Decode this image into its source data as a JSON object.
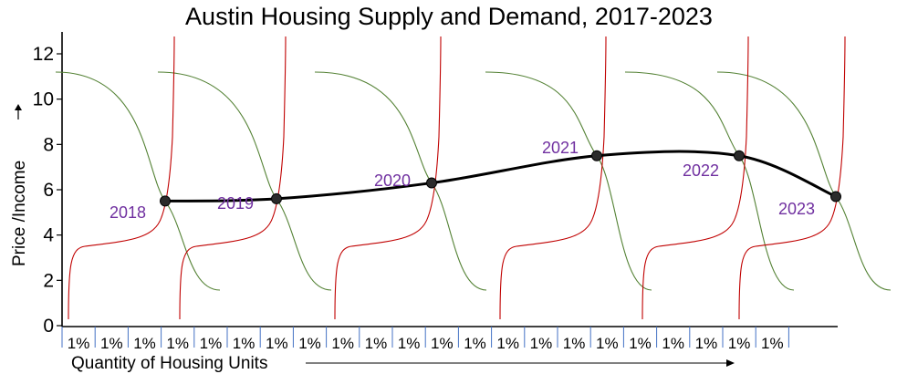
{
  "chart_data": {
    "type": "line",
    "title": "Austin Housing Supply and Demand, 2017-2023",
    "xlabel": "Quantity of Housing Units",
    "ylabel": "Price /Income",
    "ylim": [
      0,
      13
    ],
    "yticks": [
      "0",
      "2",
      "4",
      "6",
      "8",
      "10",
      "12"
    ],
    "x_segment_labels": [
      "1%",
      "1%",
      "1%",
      "1%",
      "1%",
      "1%",
      "1%",
      "1%",
      "1%",
      "1%",
      "1%",
      "1%",
      "1%",
      "1%",
      "1%",
      "1%",
      "1%",
      "1%",
      "1%",
      "1%",
      "1%",
      "1%"
    ],
    "series": [
      {
        "values": [
          {
            "year": "2018",
            "y": 5.5
          },
          {
            "year": "2019",
            "y": 5.6
          },
          {
            "year": "2020",
            "y": 6.3
          },
          {
            "year": "2021",
            "y": 7.5
          },
          {
            "year": "2022",
            "y": 7.5
          },
          {
            "year": "2023",
            "y": 5.7
          }
        ]
      }
    ],
    "point_labels": [
      "2018",
      "2019",
      "2020",
      "2021",
      "2022",
      "2023"
    ],
    "supply_curve_color": "#c00000",
    "demand_curve_color": "#548235",
    "trend_line_color": "#000000",
    "point_label_color": "#7030a0",
    "grid": false
  }
}
